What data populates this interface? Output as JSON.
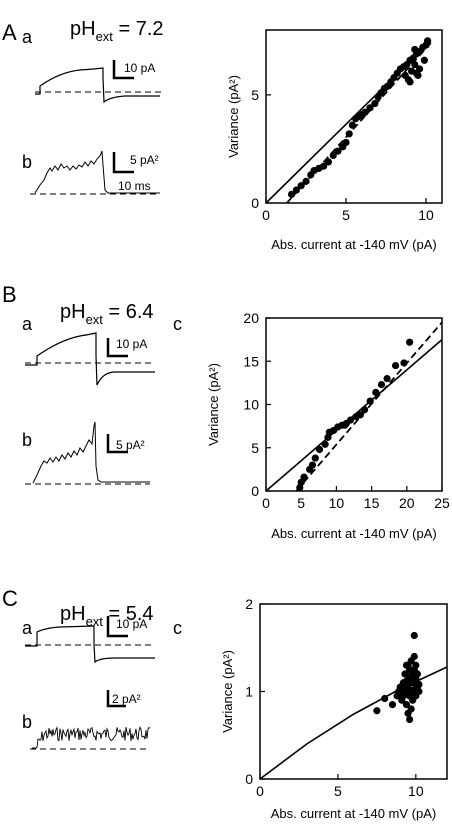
{
  "panels": [
    {
      "letter": "A",
      "sublabels": [
        "a",
        "b"
      ],
      "ph_prefix": "pH",
      "ph_sub": "ext",
      "ph_value": " = 7.2",
      "scale_current": "10 pA",
      "scale_variance": "5 pA²",
      "scale_time": "10 ms",
      "scatter_letter": ""
    },
    {
      "letter": "B",
      "sublabels": [
        "a",
        "b"
      ],
      "ph_prefix": "pH",
      "ph_sub": "ext",
      "ph_value": " = 6.4",
      "scale_current": "10 pA",
      "scale_variance": "5 pA²",
      "scale_time": "",
      "scatter_letter": "c"
    },
    {
      "letter": "C",
      "sublabels": [
        "a",
        "b"
      ],
      "ph_prefix": "pH",
      "ph_sub": "ext",
      "ph_value": " = 5.4",
      "scale_current": "10 pA",
      "scale_variance": "2 pA²",
      "scale_time": "",
      "scatter_letter": "c"
    }
  ],
  "chart_data": [
    {
      "type": "scatter",
      "title": "",
      "xlabel": "Abs. current at -140 mV (pA)",
      "ylabel": "Variance (pA²)",
      "xlim": [
        0,
        11
      ],
      "ylim": [
        0,
        8
      ],
      "xticks": [
        0,
        5,
        10
      ],
      "yticks": [
        0,
        5
      ],
      "grid": false,
      "fit_line": [
        [
          0,
          0
        ],
        [
          10.3,
          7.5
        ]
      ],
      "dashed_line": [
        [
          1.3,
          0
        ],
        [
          10.3,
          7.4
        ]
      ],
      "points": [
        [
          1.6,
          0.4
        ],
        [
          1.9,
          0.6
        ],
        [
          2.2,
          0.8
        ],
        [
          2.5,
          1.0
        ],
        [
          2.8,
          1.3
        ],
        [
          3.0,
          1.5
        ],
        [
          3.3,
          1.6
        ],
        [
          3.6,
          1.7
        ],
        [
          3.9,
          1.9
        ],
        [
          4.2,
          2.2
        ],
        [
          4.5,
          2.4
        ],
        [
          4.8,
          2.6
        ],
        [
          5.0,
          2.8
        ],
        [
          5.2,
          3.2
        ],
        [
          5.4,
          3.6
        ],
        [
          5.6,
          3.9
        ],
        [
          5.8,
          4.0
        ],
        [
          6.0,
          4.1
        ],
        [
          6.2,
          4.2
        ],
        [
          6.5,
          4.4
        ],
        [
          6.8,
          4.6
        ],
        [
          7.0,
          4.9
        ],
        [
          7.2,
          5.1
        ],
        [
          7.4,
          5.3
        ],
        [
          7.6,
          5.4
        ],
        [
          7.8,
          5.6
        ],
        [
          8.0,
          5.8
        ],
        [
          8.2,
          6.0
        ],
        [
          8.4,
          6.2
        ],
        [
          8.6,
          6.3
        ],
        [
          8.8,
          6.4
        ],
        [
          9.0,
          6.6
        ],
        [
          9.2,
          6.7
        ],
        [
          9.4,
          6.9
        ],
        [
          9.6,
          7.0
        ],
        [
          9.8,
          7.2
        ],
        [
          10.0,
          7.3
        ],
        [
          10.1,
          7.5
        ],
        [
          9.1,
          6.1
        ],
        [
          9.3,
          6.4
        ],
        [
          9.5,
          5.9
        ],
        [
          9.0,
          5.6
        ],
        [
          9.6,
          6.2
        ],
        [
          9.3,
          7.1
        ],
        [
          9.9,
          6.6
        ],
        [
          8.9,
          5.7
        ],
        [
          9.4,
          6.0
        ],
        [
          8.7,
          5.9
        ]
      ]
    },
    {
      "type": "scatter",
      "title": "",
      "xlabel": "Abs. current at -140 mV (pA)",
      "ylabel": "Variance (pA²)",
      "xlim": [
        0,
        25
      ],
      "ylim": [
        0,
        20
      ],
      "xticks": [
        0,
        5,
        10,
        15,
        20,
        25
      ],
      "yticks": [
        0,
        5,
        10,
        15,
        20
      ],
      "grid": false,
      "fit_line": [
        [
          0,
          0
        ],
        [
          25,
          17.5
        ]
      ],
      "dashed_line": [
        [
          4.3,
          0
        ],
        [
          25,
          19.5
        ]
      ],
      "points": [
        [
          4.8,
          0.4
        ],
        [
          5.0,
          1.0
        ],
        [
          5.4,
          1.6
        ],
        [
          6.2,
          2.5
        ],
        [
          6.6,
          3.0
        ],
        [
          7.0,
          3.8
        ],
        [
          7.6,
          4.8
        ],
        [
          8.4,
          5.4
        ],
        [
          8.8,
          6.2
        ],
        [
          9.6,
          7.0
        ],
        [
          10.2,
          7.4
        ],
        [
          10.8,
          7.6
        ],
        [
          11.4,
          7.8
        ],
        [
          12.0,
          8.2
        ],
        [
          12.8,
          8.6
        ],
        [
          13.4,
          8.8
        ],
        [
          14.0,
          9.4
        ],
        [
          14.8,
          10.4
        ],
        [
          15.6,
          11.4
        ],
        [
          16.4,
          12.3
        ],
        [
          17.2,
          13.0
        ],
        [
          18.4,
          14.5
        ],
        [
          19.6,
          14.8
        ],
        [
          20.4,
          17.2
        ],
        [
          11.2,
          7.6
        ],
        [
          9.0,
          6.8
        ]
      ]
    },
    {
      "type": "scatter",
      "title": "",
      "xlabel": "Abs. current at -140 mV (pA)",
      "ylabel": "Variance (pA²)",
      "xlim": [
        0,
        12
      ],
      "ylim": [
        0,
        2
      ],
      "xticks": [
        0,
        5,
        10
      ],
      "yticks": [
        0,
        1,
        2
      ],
      "grid": false,
      "fit_line": [
        [
          0,
          0
        ],
        [
          3,
          0.4
        ],
        [
          6,
          0.74
        ],
        [
          9,
          1.03
        ],
        [
          12,
          1.28
        ]
      ],
      "dashed_line": [],
      "points": [
        [
          7.5,
          0.78
        ],
        [
          8.0,
          0.92
        ],
        [
          8.5,
          0.85
        ],
        [
          8.8,
          0.95
        ],
        [
          8.9,
          1.0
        ],
        [
          9.0,
          1.05
        ],
        [
          9.1,
          0.9
        ],
        [
          9.2,
          1.1
        ],
        [
          9.2,
          0.95
        ],
        [
          9.3,
          1.2
        ],
        [
          9.3,
          1.0
        ],
        [
          9.4,
          0.85
        ],
        [
          9.4,
          1.12
        ],
        [
          9.5,
          1.3
        ],
        [
          9.5,
          0.75
        ],
        [
          9.5,
          1.05
        ],
        [
          9.6,
          1.25
        ],
        [
          9.6,
          0.95
        ],
        [
          9.6,
          1.15
        ],
        [
          9.7,
          1.35
        ],
        [
          9.7,
          1.0
        ],
        [
          9.7,
          0.8
        ],
        [
          9.8,
          1.22
        ],
        [
          9.8,
          0.9
        ],
        [
          9.8,
          1.1
        ],
        [
          9.9,
          1.64
        ],
        [
          9.9,
          1.4
        ],
        [
          9.9,
          1.02
        ],
        [
          10.0,
          1.3
        ],
        [
          10.0,
          0.95
        ],
        [
          10.0,
          1.15
        ],
        [
          10.1,
          1.2
        ],
        [
          10.1,
          1.05
        ],
        [
          10.2,
          1.08
        ],
        [
          9.6,
          0.68
        ],
        [
          9.4,
          1.3
        ],
        [
          9.9,
          1.25
        ],
        [
          10.2,
          1.0
        ],
        [
          9.3,
          1.1
        ],
        [
          9.7,
          1.18
        ]
      ]
    }
  ]
}
